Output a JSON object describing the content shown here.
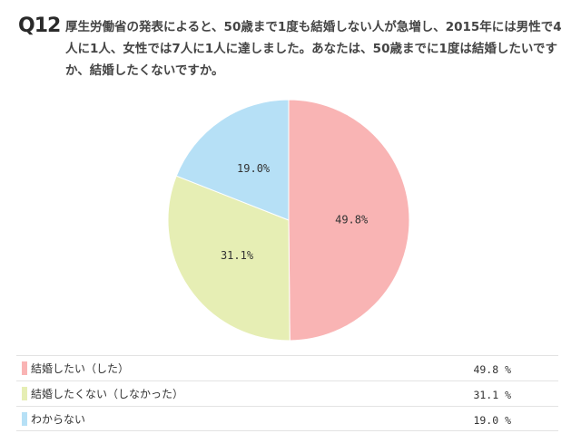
{
  "question": {
    "number": "Q12",
    "text": "厚生労働省の発表によると、50歳まで1度も結婚しない人が急増し、2015年には男性で4人に1人、女性では7人に1人に達しました。あなたは、50歳までに1度は結婚したいですか、結婚したくないですか。"
  },
  "chart_data": {
    "type": "pie",
    "slices": [
      {
        "label": "結婚したい（した）",
        "value": 49.8,
        "color": "#f9b4b4",
        "data_label": "49.8%",
        "legend_value": "49.8 %"
      },
      {
        "label": "結婚したくない（しなかった）",
        "value": 31.1,
        "color": "#e6eeb4",
        "data_label": "31.1%",
        "legend_value": "31.1 %"
      },
      {
        "label": "わからない",
        "value": 19.0,
        "color": "#b6e0f6",
        "data_label": "19.0%",
        "legend_value": "19.0 %"
      }
    ],
    "start": "top",
    "direction": "clockwise",
    "legend_placement": "bottom"
  }
}
